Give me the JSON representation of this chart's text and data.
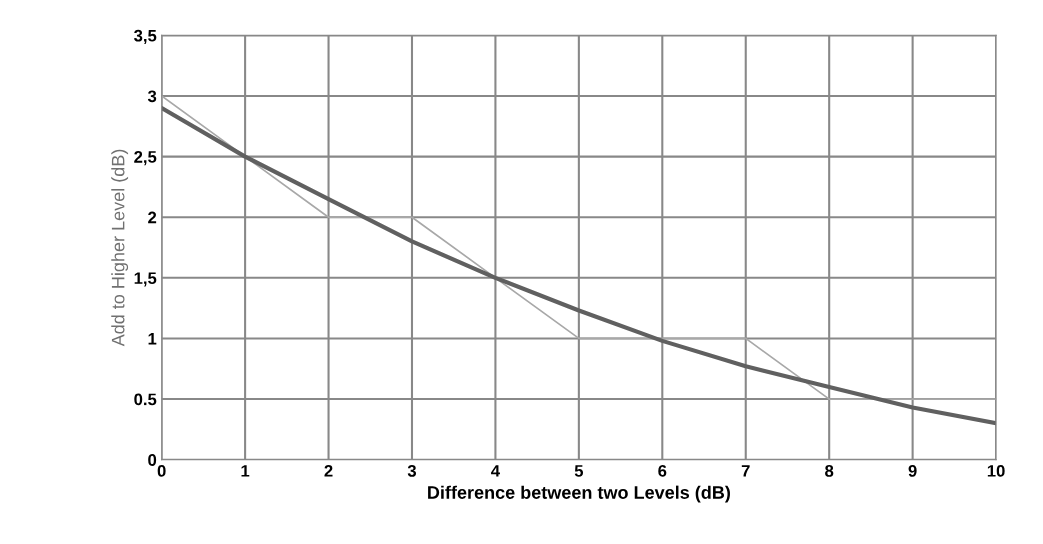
{
  "chart_data": {
    "type": "line",
    "xlabel": "Difference between two Levels (dB)",
    "ylabel": "Add to Higher Level (dB)",
    "x": [
      0,
      1,
      2,
      3,
      4,
      5,
      6,
      7,
      8,
      9,
      10
    ],
    "series": [
      {
        "color": "#a8a8a8",
        "values": [
          3,
          2.5,
          2,
          2,
          1.5,
          1,
          1,
          1,
          0.5,
          0.5,
          0.5
        ]
      },
      {
        "color": "#606060",
        "values": [
          2.9,
          2.5,
          2.15,
          1.8,
          1.5,
          1.23,
          0.98,
          0.77,
          0.6,
          0.43,
          0.3
        ]
      }
    ],
    "xlim": [
      0,
      10
    ],
    "xticks": [
      0,
      1,
      2,
      3,
      4,
      5,
      6,
      7,
      8,
      9,
      10
    ],
    "ylim": [
      0,
      3.5
    ],
    "yticks": [
      {
        "value": 0,
        "label": "0"
      },
      {
        "value": 0.5,
        "label": "0.5"
      },
      {
        "value": 1,
        "label": "1"
      },
      {
        "value": 1.5,
        "label": "1,5"
      },
      {
        "value": 2,
        "label": "2"
      },
      {
        "value": 2.5,
        "label": "2,5"
      },
      {
        "value": 3,
        "label": "3"
      },
      {
        "value": 3.5,
        "label": "3,5"
      }
    ],
    "grid": true,
    "marker": "none",
    "line_style": "solid",
    "legend": false
  }
}
